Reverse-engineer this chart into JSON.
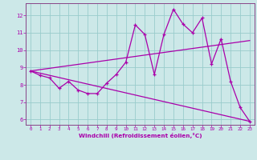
{
  "xlabel": "Windchill (Refroidissement éolien,°C)",
  "background_color": "#cce8e8",
  "grid_color": "#99cccc",
  "line_color": "#aa00aa",
  "spine_color": "#884488",
  "xlim": [
    -0.5,
    23.5
  ],
  "ylim": [
    5.7,
    12.7
  ],
  "yticks": [
    6,
    7,
    8,
    9,
    10,
    11,
    12
  ],
  "xticks": [
    0,
    1,
    2,
    3,
    4,
    5,
    6,
    7,
    8,
    9,
    10,
    11,
    12,
    13,
    14,
    15,
    16,
    17,
    18,
    19,
    20,
    21,
    22,
    23
  ],
  "line1_x": [
    0,
    1,
    2,
    3,
    4,
    5,
    6,
    7,
    8,
    9,
    10,
    11,
    12,
    13,
    14,
    15,
    16,
    17,
    18,
    19,
    20,
    21,
    22,
    23
  ],
  "line1_y": [
    8.8,
    8.55,
    8.4,
    7.8,
    8.2,
    7.7,
    7.5,
    7.5,
    8.1,
    8.6,
    9.3,
    11.45,
    10.9,
    8.6,
    10.9,
    12.35,
    11.5,
    11.0,
    11.85,
    9.2,
    10.65,
    8.2,
    6.7,
    5.9
  ],
  "line2_x": [
    0,
    23
  ],
  "line2_y": [
    8.8,
    10.55
  ],
  "line3_x": [
    0,
    23
  ],
  "line3_y": [
    8.8,
    5.9
  ]
}
